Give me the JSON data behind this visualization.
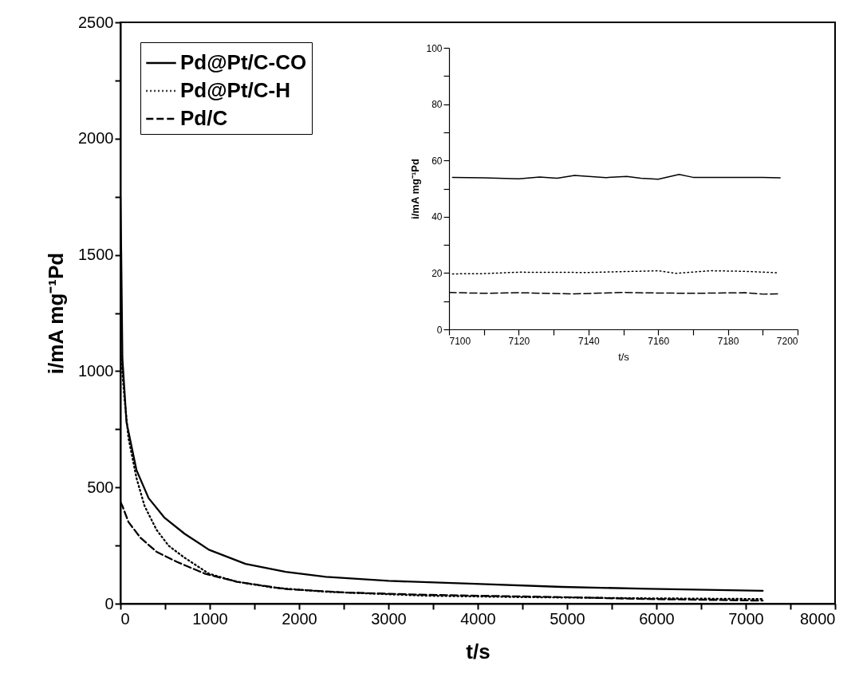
{
  "chart_data": [
    {
      "type": "line",
      "xlabel": "t/s",
      "ylabel": "i/mA mg⁻¹Pd",
      "xlim": [
        0,
        8000
      ],
      "ylim": [
        0,
        2500
      ],
      "xticks": [
        0,
        {
          "value": 500,
          "label": null
        },
        1000,
        {
          "value": 1500,
          "label": null
        },
        2000,
        {
          "value": 2500,
          "label": null
        },
        3000,
        {
          "value": 3500,
          "label": null
        },
        4000,
        {
          "value": 4500,
          "label": null
        },
        5000,
        {
          "value": 5500,
          "label": null
        },
        6000,
        {
          "value": 6500,
          "label": null
        },
        7000,
        {
          "value": 7500,
          "label": null
        },
        8000
      ],
      "yticks": [
        0,
        {
          "value": 250,
          "label": null
        },
        500,
        {
          "value": 750,
          "label": null
        },
        1000,
        {
          "value": 1250,
          "label": null
        },
        1500,
        {
          "value": 1750,
          "label": null
        },
        2000,
        {
          "value": 2250,
          "label": null
        },
        2500
      ],
      "grid": false,
      "legend": "top left",
      "marker": "none",
      "series": [
        {
          "name": "Pd@Pt/C-CO",
          "color": "#000000",
          "line_style": "solid",
          "x": [
            0,
            9,
            22,
            68,
            180,
            315,
            495,
            720,
            990,
            1400,
            1850,
            2300,
            3000,
            3970,
            4940,
            5910,
            7190
          ],
          "values": [
            1750,
            1500,
            1054,
            780,
            574,
            454,
            369,
            300,
            232,
            171,
            137,
            115,
            98,
            85,
            72,
            64,
            55
          ]
        },
        {
          "name": "Pd@Pt/C-H",
          "color": "#000000",
          "line_style": "dotted",
          "x": [
            0,
            45,
            90,
            180,
            270,
            405,
            540,
            720,
            990,
            1305,
            1710,
            2300,
            3420,
            4500,
            5900,
            7190
          ],
          "values": [
            1100,
            883,
            712,
            540,
            420,
            317,
            249,
            197,
            129,
            94,
            69,
            51,
            34,
            28,
            23,
            20
          ]
        },
        {
          "name": "Pd/C",
          "color": "#000000",
          "line_style": "dashed",
          "x": [
            0,
            22,
            90,
            225,
            405,
            630,
            945,
            1305,
            1850,
            2520,
            3420,
            4940,
            5900,
            7190
          ],
          "values": [
            437,
            420,
            351,
            283,
            223,
            180,
            129,
            94,
            63,
            48,
            38,
            28,
            20,
            13
          ]
        }
      ]
    },
    {
      "type": "line",
      "xlabel": "t/s",
      "ylabel": "i/mA mg⁻¹Pd",
      "xlim": [
        7100,
        7200
      ],
      "ylim": [
        0,
        100
      ],
      "xticks": [
        7100,
        {
          "value": 7110,
          "label": null
        },
        7120,
        {
          "value": 7130,
          "label": null
        },
        7140,
        {
          "value": 7150,
          "label": null
        },
        7160,
        {
          "value": 7170,
          "label": null
        },
        7180,
        {
          "value": 7190,
          "label": null
        },
        7200
      ],
      "yticks": [
        0,
        {
          "value": 10,
          "label": null
        },
        20,
        {
          "value": 30,
          "label": null
        },
        40,
        {
          "value": 50,
          "label": null
        },
        60,
        {
          "value": 70,
          "label": null
        },
        80,
        {
          "value": 90,
          "label": null
        },
        100
      ],
      "grid": false,
      "legend": false,
      "marker": "none",
      "series": [
        {
          "color": "#000000",
          "line_style": "solid",
          "x": [
            7101,
            7110,
            7120,
            7126,
            7131,
            7136,
            7145,
            7151,
            7155,
            7160,
            7166,
            7170,
            7180,
            7190,
            7195
          ],
          "values": [
            54,
            53.8,
            53.5,
            54.1,
            53.7,
            54.7,
            53.9,
            54.3,
            53.7,
            53.3,
            55,
            54,
            54,
            54,
            53.8
          ]
        },
        {
          "color": "#000000",
          "line_style": "dotted",
          "x": [
            7101,
            7110,
            7120,
            7140,
            7150,
            7160,
            7165,
            7175,
            7185,
            7194
          ],
          "values": [
            19.7,
            19.8,
            20.3,
            20.2,
            20.5,
            20.8,
            19.9,
            20.8,
            20.6,
            20.1
          ]
        },
        {
          "color": "#000000",
          "line_style": "dashed",
          "x": [
            7100,
            7110,
            7120,
            7136,
            7150,
            7160,
            7170,
            7185,
            7190,
            7195
          ],
          "values": [
            13.1,
            12.8,
            13,
            12.6,
            13.1,
            12.9,
            12.8,
            13,
            12.5,
            12.6
          ]
        }
      ]
    }
  ]
}
